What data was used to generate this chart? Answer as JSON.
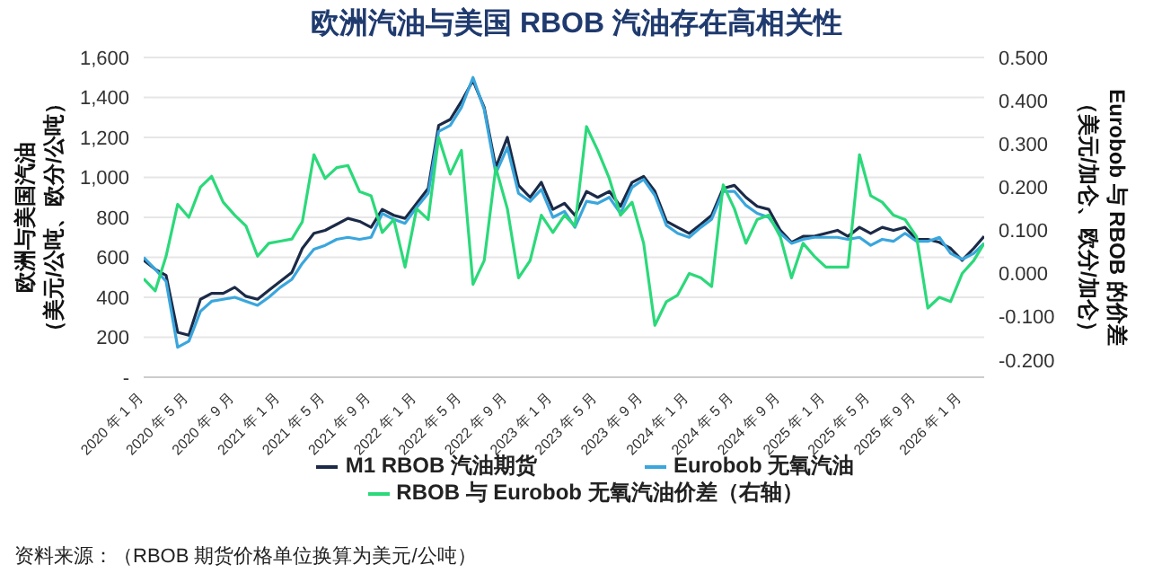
{
  "chart_data": {
    "type": "line",
    "title": "欧洲汽油与美国 RBOB 汽油存在高相关性",
    "ylabel": "欧洲与美国汽油（美元/公吨、欧分/公吨）",
    "y2label": "Eurobob 与 RBOB 的价差（美元/加仑、欧分/加仑）",
    "annotations": [
      "资料来源：（RBOB 期货价格单位换算为美元/公吨）"
    ],
    "x": [
      "2020-01",
      "2020-02",
      "2020-03",
      "2020-04",
      "2020-05",
      "2020-06",
      "2020-07",
      "2020-08",
      "2020-09",
      "2020-10",
      "2020-11",
      "2020-12",
      "2021-01",
      "2021-02",
      "2021-03",
      "2021-04",
      "2021-05",
      "2021-06",
      "2021-07",
      "2021-08",
      "2021-09",
      "2021-10",
      "2021-11",
      "2021-12",
      "2022-01",
      "2022-02",
      "2022-03",
      "2022-04",
      "2022-05",
      "2022-06",
      "2022-07",
      "2022-08",
      "2022-09",
      "2022-10",
      "2022-11",
      "2022-12",
      "2023-01",
      "2023-02",
      "2023-03",
      "2023-04",
      "2023-05",
      "2023-06",
      "2023-07",
      "2023-08",
      "2023-09",
      "2023-10",
      "2023-11",
      "2023-12",
      "2024-01",
      "2024-02",
      "2024-03",
      "2024-04",
      "2024-05",
      "2024-06",
      "2024-07",
      "2024-08",
      "2024-09",
      "2024-10",
      "2024-11",
      "2024-12",
      "2025-01",
      "2025-02",
      "2025-03",
      "2025-04",
      "2025-05",
      "2025-06",
      "2025-07",
      "2025-08",
      "2025-09",
      "2025-10",
      "2025-11",
      "2025-12",
      "2026-01",
      "2026-02",
      "2026-03"
    ],
    "series": [
      {
        "name": "M1 RBOB 汽油期货",
        "color": "#1b2a47",
        "values": [
          585,
          540,
          510,
          225,
          210,
          390,
          420,
          420,
          450,
          405,
          390,
          435,
          480,
          525,
          645,
          720,
          735,
          765,
          795,
          780,
          750,
          840,
          810,
          795,
          870,
          945,
          1260,
          1290,
          1380,
          1485,
          1350,
          1050,
          1200,
          960,
          900,
          975,
          840,
          870,
          810,
          930,
          900,
          930,
          855,
          975,
          1005,
          930,
          780,
          750,
          720,
          765,
          810,
          945,
          960,
          900,
          855,
          840,
          735,
          675,
          705,
          705,
          720,
          735,
          705,
          750,
          720,
          750,
          735,
          750,
          690,
          690,
          675,
          645,
          585,
          645,
          705
        ]
      },
      {
        "name": "Eurobob 无氧汽油",
        "color": "#3aa6dd",
        "values": [
          600,
          540,
          480,
          150,
          180,
          330,
          380,
          390,
          400,
          380,
          360,
          400,
          450,
          490,
          570,
          640,
          660,
          690,
          700,
          690,
          700,
          820,
          790,
          770,
          850,
          920,
          1230,
          1260,
          1350,
          1500,
          1340,
          1020,
          1150,
          920,
          880,
          940,
          800,
          830,
          750,
          880,
          870,
          900,
          820,
          950,
          990,
          910,
          760,
          720,
          700,
          750,
          790,
          930,
          930,
          860,
          820,
          800,
          720,
          670,
          690,
          700,
          700,
          700,
          690,
          700,
          660,
          690,
          680,
          720,
          680,
          680,
          700,
          620,
          590,
          620,
          670
        ]
      },
      {
        "name": "RBOB 与 Eurobob 无氧汽油价差（右轴）",
        "color": "#2bd97a",
        "axis": "y2",
        "values": [
          -0.012,
          -0.04,
          0.04,
          0.16,
          0.13,
          0.2,
          0.225,
          0.165,
          0.135,
          0.11,
          0.04,
          0.07,
          0.075,
          0.08,
          0.12,
          0.275,
          0.22,
          0.245,
          0.25,
          0.19,
          0.18,
          0.095,
          0.125,
          0.015,
          0.15,
          0.125,
          0.315,
          0.23,
          0.285,
          -0.025,
          0.03,
          0.245,
          0.15,
          -0.01,
          0.03,
          0.135,
          0.095,
          0.135,
          0.11,
          0.34,
          0.285,
          0.22,
          0.135,
          0.165,
          0.07,
          -0.12,
          -0.065,
          -0.05,
          0.0,
          -0.01,
          -0.03,
          0.205,
          0.15,
          0.07,
          0.125,
          0.135,
          0.085,
          -0.01,
          0.07,
          0.04,
          0.015,
          0.015,
          0.015,
          0.275,
          0.18,
          0.165,
          0.135,
          0.125,
          0.085,
          -0.08,
          -0.055,
          -0.065,
          0.0,
          0.03,
          0.07
        ]
      }
    ],
    "xlim": [
      "2020-01",
      "2026-03"
    ],
    "xticks": [
      {
        "value": "2020-01",
        "label": "2020 年 1 月"
      },
      {
        "value": "2020-05",
        "label": "2020 年 5 月"
      },
      {
        "value": "2020-09",
        "label": "2020 年 9 月"
      },
      {
        "value": "2021-01",
        "label": "2021 年 1 月"
      },
      {
        "value": "2021-05",
        "label": "2021 年 5 月"
      },
      {
        "value": "2021-09",
        "label": "2021 年 9 月"
      },
      {
        "value": "2022-01",
        "label": "2022 年 1 月"
      },
      {
        "value": "2022-05",
        "label": "2022 年 5 月"
      },
      {
        "value": "2022-09",
        "label": "2022 年 9 月"
      },
      {
        "value": "2023-01",
        "label": "2023 年 1 月"
      },
      {
        "value": "2023-05",
        "label": "2023 年 5 月"
      },
      {
        "value": "2023-09",
        "label": "2023 年 9 月"
      },
      {
        "value": "2024-01",
        "label": "2024 年 1 月"
      },
      {
        "value": "2024-05",
        "label": "2024 年 5 月"
      },
      {
        "value": "2024-09",
        "label": "2024 年 9 月"
      },
      {
        "value": "2025-01",
        "label": "2025 年 1 月"
      },
      {
        "value": "2025-05",
        "label": "2025 年 5 月"
      },
      {
        "value": "2025-09",
        "label": "2025 年 9 月"
      },
      {
        "value": "2026-01",
        "label": "2026 年 1 月"
      }
    ],
    "ylim": [
      0,
      1600
    ],
    "yticks": [
      {
        "value": 0,
        "label": "-"
      },
      {
        "value": 200,
        "label": "200"
      },
      {
        "value": 400,
        "label": "400"
      },
      {
        "value": 600,
        "label": "600"
      },
      {
        "value": 800,
        "label": "800"
      },
      {
        "value": 1000,
        "label": "1,000"
      },
      {
        "value": 1200,
        "label": "1,200"
      },
      {
        "value": 1400,
        "label": "1,400"
      },
      {
        "value": 1600,
        "label": "1,600"
      }
    ],
    "y2lim": [
      -0.24,
      0.5
    ],
    "y2ticks": [
      {
        "value": -0.2,
        "label": "-0.200"
      },
      {
        "value": -0.1,
        "label": "-0.100"
      },
      {
        "value": 0,
        "label": "0.000"
      },
      {
        "value": 0.1,
        "label": "0.100"
      },
      {
        "value": 0.2,
        "label": "0.200"
      },
      {
        "value": 0.3,
        "label": "0.300"
      },
      {
        "value": 0.4,
        "label": "0.400"
      },
      {
        "value": 0.5,
        "label": "0.500"
      }
    ],
    "grid": "y",
    "legend": "bottom",
    "marker": "none",
    "line_style": "solid"
  }
}
